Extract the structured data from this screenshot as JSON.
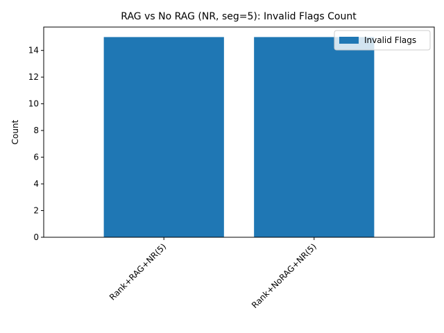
{
  "chart_data": {
    "type": "bar",
    "title": "RAG vs No RAG (NR, seg=5): Invalid Flags Count",
    "xlabel": "",
    "ylabel": "Count",
    "categories": [
      "Rank+RAG+NR(5)",
      "Rank+NoRAG+NR(5)"
    ],
    "series": [
      {
        "name": "Invalid Flags",
        "values": [
          15,
          15
        ],
        "color": "#1f77b4"
      }
    ],
    "ylim": [
      0,
      15.75
    ],
    "yticks": [
      0,
      2,
      4,
      6,
      8,
      10,
      12,
      14
    ],
    "grid": false,
    "legend": "upper-right"
  }
}
